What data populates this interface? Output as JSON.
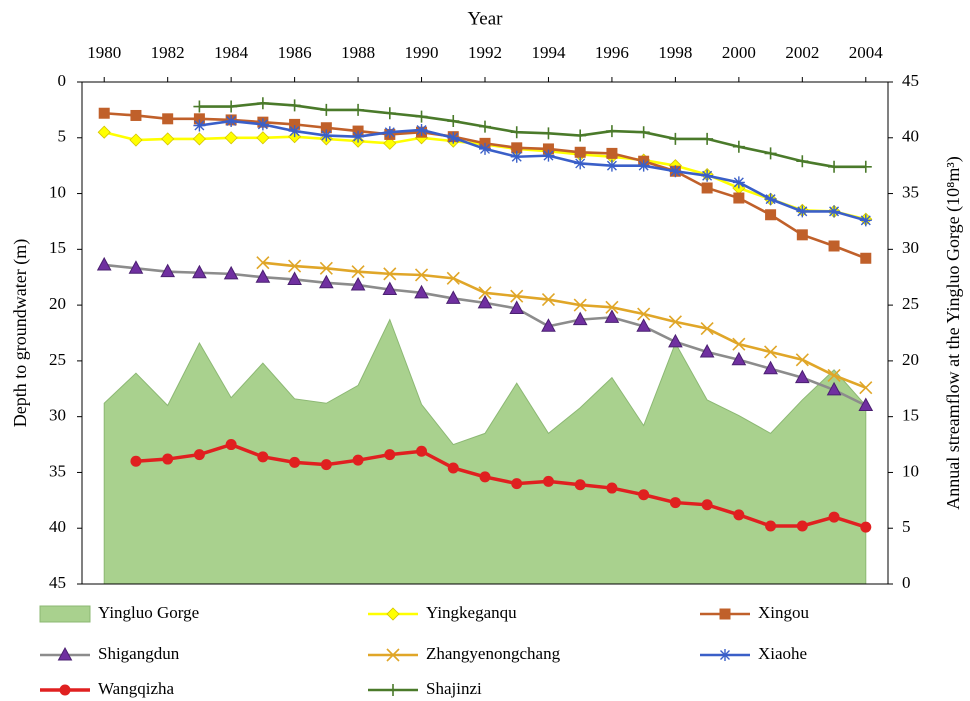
{
  "chart_data": {
    "type": "line",
    "x_label": "Year",
    "y_label": "Depth to groundwater (m)",
    "y2_label": "Annual  streamflow at the Yingluo  Gorge (10⁸m³)",
    "x": [
      1980,
      1981,
      1982,
      1983,
      1984,
      1985,
      1986,
      1987,
      1988,
      1989,
      1990,
      1991,
      1992,
      1993,
      1994,
      1995,
      1996,
      1997,
      1998,
      1999,
      2000,
      2001,
      2002,
      2003,
      2004
    ],
    "xlim": [
      1979.3,
      2004.7
    ],
    "xticks": [
      1980,
      1982,
      1984,
      1986,
      1988,
      1990,
      1992,
      1994,
      1996,
      1998,
      2000,
      2002,
      2004
    ],
    "ylim": [
      0,
      45
    ],
    "y_inverted": true,
    "yticks": [
      0,
      5,
      10,
      15,
      20,
      25,
      30,
      35,
      40,
      45
    ],
    "y2lim": [
      0,
      45
    ],
    "y2ticks": [
      0,
      5,
      10,
      15,
      20,
      25,
      30,
      35,
      40,
      45
    ],
    "series": [
      {
        "name": "Yingluo Gorge",
        "kind": "area",
        "axis": "y2",
        "color": "#a9d18e",
        "values": [
          16.2,
          18.9,
          16.0,
          21.6,
          16.7,
          19.8,
          16.6,
          16.2,
          17.8,
          23.7,
          16.1,
          12.5,
          13.5,
          18.0,
          13.5,
          15.8,
          18.5,
          14.2,
          21.6,
          16.5,
          15.1,
          13.5,
          16.5,
          19.2,
          16.0
        ]
      },
      {
        "name": "Yingkeganqu",
        "marker": "diamond",
        "color": "#ffff00",
        "values": [
          4.5,
          5.2,
          5.1,
          5.1,
          5.0,
          5.0,
          4.9,
          5.1,
          5.3,
          5.5,
          5.0,
          5.3,
          5.6,
          6.0,
          6.2,
          6.5,
          6.7,
          7.0,
          7.5,
          8.3,
          9.5,
          10.5,
          11.5,
          11.6,
          12.3
        ]
      },
      {
        "name": "Xingou",
        "marker": "square",
        "color": "#c0602a",
        "values": [
          2.8,
          3.0,
          3.3,
          3.3,
          3.4,
          3.6,
          3.8,
          4.1,
          4.4,
          4.7,
          4.5,
          4.9,
          5.5,
          5.9,
          6.0,
          6.3,
          6.4,
          7.1,
          8.0,
          9.5,
          10.4,
          11.9,
          13.7,
          14.7,
          15.8
        ]
      },
      {
        "name": "Shigangdun",
        "marker": "triangle",
        "color": "#8c8c8c",
        "marker_color": "#7030a0",
        "values": [
          16.4,
          16.7,
          17.0,
          17.1,
          17.2,
          17.5,
          17.7,
          18.0,
          18.2,
          18.6,
          18.9,
          19.4,
          19.8,
          20.3,
          21.9,
          21.3,
          21.1,
          21.9,
          23.3,
          24.2,
          24.9,
          25.7,
          26.5,
          27.6,
          29.0
        ]
      },
      {
        "name": "Zhangyenongchang",
        "marker": "x",
        "color": "#e0a628",
        "values": [
          null,
          null,
          null,
          null,
          null,
          16.2,
          16.5,
          16.7,
          17.0,
          17.2,
          17.3,
          17.6,
          18.9,
          19.2,
          19.5,
          20.0,
          20.2,
          20.8,
          21.5,
          22.1,
          23.5,
          24.2,
          24.9,
          26.3,
          27.4
        ]
      },
      {
        "name": "Xiaohe",
        "marker": "asterisk",
        "color": "#3a5fc8",
        "values": [
          null,
          null,
          null,
          3.9,
          3.5,
          3.8,
          4.4,
          4.8,
          4.9,
          4.5,
          4.3,
          5.0,
          6.0,
          6.7,
          6.6,
          7.3,
          7.5,
          7.5,
          8.0,
          8.4,
          9.0,
          10.5,
          11.6,
          11.6,
          12.4
        ]
      },
      {
        "name": "Wangqizha",
        "marker": "circle",
        "color": "#e02020",
        "values": [
          null,
          34.0,
          33.8,
          33.4,
          32.5,
          33.6,
          34.1,
          34.3,
          33.9,
          33.4,
          33.1,
          34.6,
          35.4,
          36.0,
          35.8,
          36.1,
          36.4,
          37.0,
          37.7,
          37.9,
          38.8,
          39.8,
          39.8,
          39.0,
          39.9
        ]
      },
      {
        "name": "Shajinzi",
        "marker": "plus",
        "color": "#4a7a2a",
        "values": [
          null,
          null,
          null,
          2.2,
          2.2,
          1.9,
          2.1,
          2.5,
          2.5,
          2.8,
          3.1,
          3.5,
          4.0,
          4.5,
          4.6,
          4.8,
          4.4,
          4.5,
          5.1,
          5.1,
          5.8,
          6.4,
          7.1,
          7.6,
          7.6
        ]
      }
    ]
  }
}
